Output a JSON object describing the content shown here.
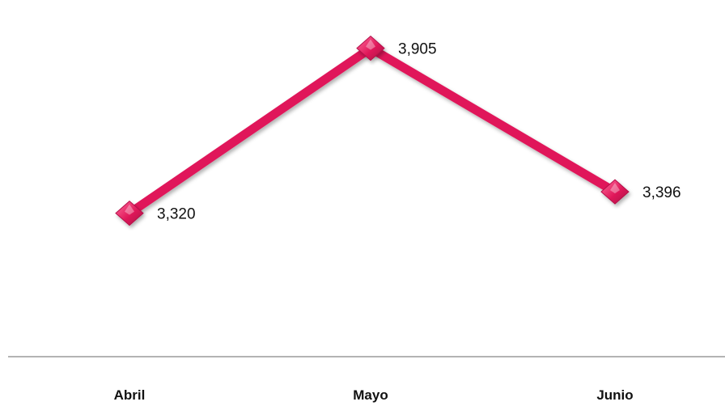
{
  "chart_data": {
    "type": "line",
    "categories": [
      "Abril",
      "Mayo",
      "Junio"
    ],
    "series": [
      {
        "values": [
          3320,
          3905,
          3396
        ],
        "labels": [
          "3,320",
          "3,905",
          "3,396"
        ],
        "color": "#e0195a",
        "marker": "diamond"
      }
    ],
    "title": "",
    "xlabel": "",
    "ylabel": "",
    "ylim": [
      3000,
      4000
    ],
    "grid": false,
    "legend": "none"
  }
}
